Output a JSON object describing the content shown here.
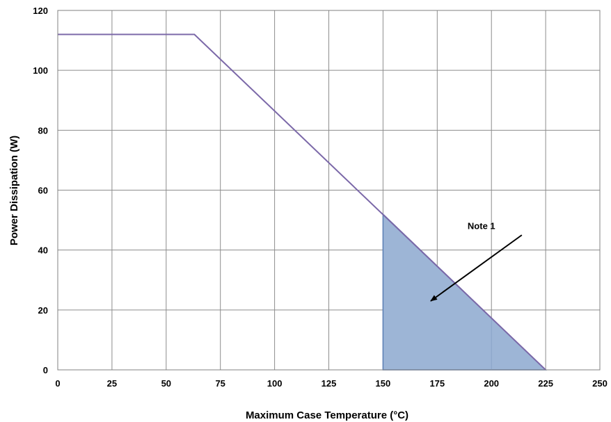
{
  "chart_data": {
    "type": "line",
    "xlabel": "Maximum Case Temperature (°C)",
    "ylabel": "Power Dissipation (W)",
    "xlim": [
      0,
      250
    ],
    "ylim": [
      0,
      120
    ],
    "xticks": [
      0,
      25,
      50,
      75,
      100,
      125,
      150,
      175,
      200,
      225,
      250
    ],
    "yticks": [
      0,
      20,
      40,
      60,
      80,
      100,
      120
    ],
    "grid": true,
    "legend": "none",
    "series": [
      {
        "color": "#7b68a8",
        "points": [
          {
            "x": 0,
            "y": 112
          },
          {
            "x": 63,
            "y": 112
          },
          {
            "x": 225,
            "y": 0
          }
        ]
      }
    ],
    "shaded_region": {
      "color": "#9db5d6",
      "edge_color": "#5b7fb5",
      "points": [
        {
          "x": 150,
          "y": 0
        },
        {
          "x": 150,
          "y": 52
        },
        {
          "x": 225,
          "y": 0
        }
      ]
    },
    "annotation": {
      "text": "Note 1",
      "text_at": {
        "x": 189,
        "y": 47
      },
      "arrow_from": {
        "x": 214,
        "y": 45
      },
      "arrow_to": {
        "x": 172,
        "y": 23
      }
    }
  }
}
